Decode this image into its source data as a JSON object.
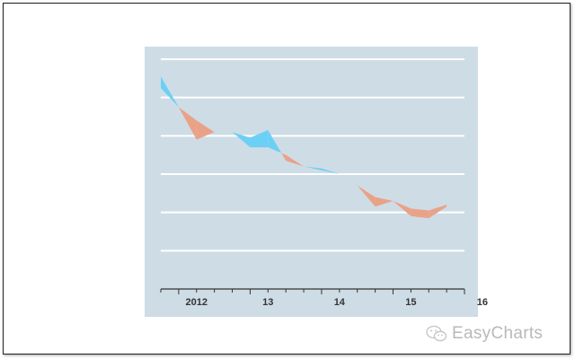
{
  "chart_data": {
    "type": "area",
    "title": "",
    "xlabel": "",
    "ylabel": "",
    "x_tick_labels": [
      "2012",
      "13",
      "14",
      "15",
      "16"
    ],
    "x": [
      2011.75,
      2012.0,
      2012.25,
      2012.5,
      2012.75,
      2013.0,
      2013.25,
      2013.5,
      2013.75,
      2014.0,
      2014.25,
      2014.5,
      2014.75,
      2015.0,
      2015.25,
      2015.5,
      2015.75
    ],
    "ylim": [
      0,
      6
    ],
    "grid": true,
    "series": [
      {
        "values": [
          5.25,
          4.75,
          4.4,
          4.1,
          4.1,
          3.7,
          3.7,
          3.5,
          3.2,
          3.1,
          3.0,
          2.7,
          2.4,
          2.3,
          2.1,
          2.05,
          2.2
        ]
      },
      {
        "values": [
          5.55,
          4.75,
          3.9,
          4.1,
          4.1,
          3.95,
          4.15,
          3.35,
          3.2,
          3.15,
          3.0,
          2.7,
          2.15,
          2.3,
          1.9,
          1.85,
          2.15
        ]
      }
    ],
    "colors": {
      "above": "#6ccff6",
      "below": "#e9a288",
      "plot_bg": "#cedce6",
      "grid": "#ffffff",
      "axis": "#333333"
    }
  },
  "watermark": {
    "text": "EasyCharts",
    "icon": "wechat-icon"
  }
}
